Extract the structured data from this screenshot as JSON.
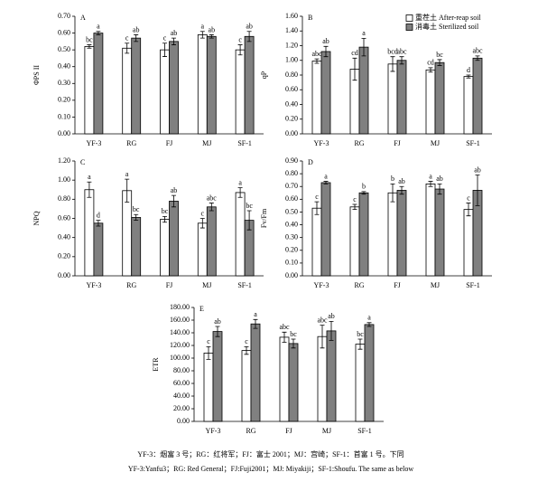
{
  "chart_data": [
    {
      "type": "bar",
      "label": "A",
      "ylabel": "ΦPS II",
      "categories": [
        "YF-3",
        "RG",
        "FJ",
        "MJ",
        "SF-1"
      ],
      "ylim": [
        0,
        0.7
      ],
      "yticks": [
        {
          "value": 0,
          "label": "0.00"
        },
        {
          "value": 0.1,
          "label": "0.10"
        },
        {
          "value": 0.2,
          "label": "0.20"
        },
        {
          "value": 0.3,
          "label": "0.30"
        },
        {
          "value": 0.4,
          "label": "0.40"
        },
        {
          "value": 0.5,
          "label": "0.50"
        },
        {
          "value": 0.6,
          "label": "0.60"
        },
        {
          "value": 0.7,
          "label": "0.70"
        }
      ],
      "series": [
        {
          "color": "#ffffff",
          "values": [
            0.52,
            0.51,
            0.5,
            0.59,
            0.5
          ],
          "errors": [
            0.01,
            0.03,
            0.04,
            0.02,
            0.03
          ],
          "letters": [
            "bc",
            "c",
            "c",
            "a",
            "c"
          ]
        },
        {
          "color": "#808080",
          "values": [
            0.6,
            0.57,
            0.55,
            0.58,
            0.58
          ],
          "errors": [
            0.01,
            0.02,
            0.02,
            0.01,
            0.03
          ],
          "letters": [
            "a",
            "ab",
            "ab",
            "ab",
            "ab"
          ]
        }
      ]
    },
    {
      "type": "bar",
      "label": "B",
      "ylabel": "qP",
      "legend": "upper right",
      "categories": [
        "YF-3",
        "RG",
        "FJ",
        "MJ",
        "SF-1"
      ],
      "ylim": [
        0,
        1.6
      ],
      "yticks": [
        {
          "value": 0,
          "label": "0.00"
        },
        {
          "value": 0.2,
          "label": "0.20"
        },
        {
          "value": 0.4,
          "label": "0.40"
        },
        {
          "value": 0.6,
          "label": "0.60"
        },
        {
          "value": 0.8,
          "label": "0.80"
        },
        {
          "value": 1,
          "label": "1.00"
        },
        {
          "value": 1.2,
          "label": "1.20"
        },
        {
          "value": 1.4,
          "label": "1.40"
        },
        {
          "value": 1.6,
          "label": "1.60"
        }
      ],
      "series": [
        {
          "name": "重茬土 After-reap soil",
          "color": "#ffffff",
          "values": [
            0.99,
            0.88,
            0.95,
            0.87,
            0.78
          ],
          "errors": [
            0.03,
            0.15,
            0.1,
            0.03,
            0.02
          ],
          "letters": [
            "abc",
            "cd",
            "bcd",
            "cd",
            "d"
          ]
        },
        {
          "name": "消毒土 Sterilized soil",
          "color": "#808080",
          "values": [
            1.12,
            1.18,
            1.0,
            0.97,
            1.03
          ],
          "errors": [
            0.07,
            0.12,
            0.05,
            0.04,
            0.03
          ],
          "letters": [
            "ab",
            "a",
            "abc",
            "bc",
            "abc"
          ]
        }
      ]
    },
    {
      "type": "bar",
      "label": "C",
      "ylabel": "NPQ",
      "categories": [
        "YF-3",
        "RG",
        "FJ",
        "MJ",
        "SF-1"
      ],
      "ylim": [
        0,
        1.2
      ],
      "yticks": [
        {
          "value": 0,
          "label": "0.00"
        },
        {
          "value": 0.2,
          "label": "0.20"
        },
        {
          "value": 0.4,
          "label": "0.40"
        },
        {
          "value": 0.6,
          "label": "0.60"
        },
        {
          "value": 0.8,
          "label": "0.80"
        },
        {
          "value": 1,
          "label": "1.00"
        },
        {
          "value": 1.2,
          "label": "1.20"
        }
      ],
      "series": [
        {
          "color": "#ffffff",
          "values": [
            0.9,
            0.89,
            0.59,
            0.55,
            0.87
          ],
          "errors": [
            0.08,
            0.12,
            0.03,
            0.05,
            0.05
          ],
          "letters": [
            "a",
            "a",
            "bc",
            "c",
            "a"
          ]
        },
        {
          "color": "#808080",
          "values": [
            0.55,
            0.61,
            0.78,
            0.72,
            0.58
          ],
          "errors": [
            0.03,
            0.03,
            0.06,
            0.04,
            0.1
          ],
          "letters": [
            "d",
            "bc",
            "ab",
            "abc",
            "bc"
          ]
        }
      ]
    },
    {
      "type": "bar",
      "label": "D",
      "ylabel": "Fv/Fm",
      "categories": [
        "YF-3",
        "RG",
        "FJ",
        "MJ",
        "SF-1"
      ],
      "ylim": [
        0,
        0.9
      ],
      "yticks": [
        {
          "value": 0,
          "label": "0.00"
        },
        {
          "value": 0.1,
          "label": "0.10"
        },
        {
          "value": 0.2,
          "label": "0.20"
        },
        {
          "value": 0.3,
          "label": "0.30"
        },
        {
          "value": 0.4,
          "label": "0.40"
        },
        {
          "value": 0.5,
          "label": "0.50"
        },
        {
          "value": 0.6,
          "label": "0.60"
        },
        {
          "value": 0.7,
          "label": "0.70"
        },
        {
          "value": 0.8,
          "label": "0.80"
        },
        {
          "value": 0.9,
          "label": "0.90"
        }
      ],
      "series": [
        {
          "color": "#ffffff",
          "values": [
            0.53,
            0.54,
            0.65,
            0.72,
            0.52
          ],
          "errors": [
            0.05,
            0.02,
            0.07,
            0.02,
            0.05
          ],
          "letters": [
            "c",
            "c",
            "b",
            "a",
            "c"
          ]
        },
        {
          "color": "#808080",
          "values": [
            0.73,
            0.65,
            0.67,
            0.68,
            0.67
          ],
          "errors": [
            0.01,
            0.01,
            0.03,
            0.04,
            0.12
          ],
          "letters": [
            "a",
            "b",
            "ab",
            "ab",
            "ab"
          ]
        }
      ]
    },
    {
      "type": "bar",
      "label": "E",
      "ylabel": "ETR",
      "categories": [
        "YF-3",
        "RG",
        "FJ",
        "MJ",
        "SF-1"
      ],
      "ylim": [
        0,
        180
      ],
      "yticks": [
        {
          "value": 0,
          "label": "0.00"
        },
        {
          "value": 20,
          "label": "20.00"
        },
        {
          "value": 40,
          "label": "40.00"
        },
        {
          "value": 60,
          "label": "60.00"
        },
        {
          "value": 80,
          "label": "80.00"
        },
        {
          "value": 100,
          "label": "100.00"
        },
        {
          "value": 120,
          "label": "120.00"
        },
        {
          "value": 140,
          "label": "140.00"
        },
        {
          "value": 160,
          "label": "160.00"
        },
        {
          "value": 180,
          "label": "180.00"
        }
      ],
      "series": [
        {
          "color": "#ffffff",
          "values": [
            108,
            112,
            133,
            134,
            122
          ],
          "errors": [
            10,
            6,
            8,
            18,
            8
          ],
          "letters": [
            "c",
            "c",
            "abc",
            "abc",
            "bc"
          ]
        },
        {
          "color": "#808080",
          "values": [
            142,
            154,
            123,
            143,
            153
          ],
          "errors": [
            8,
            7,
            7,
            15,
            3
          ],
          "letters": [
            "ab",
            "a",
            "bc",
            "ab",
            "a"
          ]
        }
      ]
    }
  ],
  "caption": [
    "YF-3：烟富 3 号；RG：红将军；FJ：富士 2001；MJ：宫崎；SF-1：首富 1 号。下同",
    "YF-3:Yanfu3；RG: Red General；FJ:Fuji2001；MJ: Miyakiji；SF-1:Shoufu. The same as below"
  ]
}
